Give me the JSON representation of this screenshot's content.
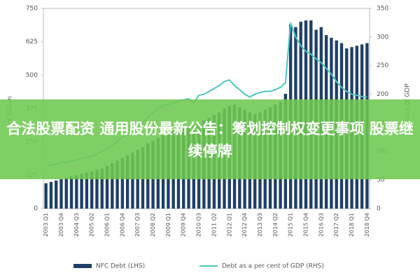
{
  "chart_data": {
    "type": "bar",
    "y_label": "€ billion",
    "y2_label": "per cent of GDP",
    "categories": [
      "2003 Q1",
      null,
      null,
      "2003 Q4",
      null,
      null,
      "2004 Q3",
      null,
      null,
      "2005 Q2",
      null,
      null,
      "2006 Q1",
      null,
      null,
      "2006 Q4",
      null,
      null,
      "2007 Q3",
      null,
      null,
      "2008 Q2",
      null,
      null,
      "2009 Q1",
      null,
      null,
      "2009 Q4",
      null,
      null,
      "2010 Q3",
      null,
      null,
      "2011 Q2",
      null,
      null,
      "2012 Q1",
      null,
      null,
      "2012 Q4",
      null,
      null,
      "2013 Q3",
      null,
      null,
      "2014 Q2",
      null,
      null,
      "2015 Q1",
      null,
      null,
      "2015 Q4",
      null,
      null,
      "2016 Q3",
      null,
      null,
      "2017 Q2",
      null,
      null,
      "2018 Q1",
      null,
      null,
      "2018 Q4"
    ],
    "series": [
      {
        "name": "NFC Debt (LHS)",
        "type": "bar",
        "color": "#1f3f66",
        "values": [
          95,
          100,
          105,
          110,
          115,
          120,
          125,
          130,
          135,
          140,
          145,
          150,
          160,
          170,
          180,
          190,
          200,
          210,
          220,
          230,
          245,
          255,
          265,
          275,
          285,
          290,
          295,
          300,
          305,
          310,
          320,
          330,
          340,
          350,
          360,
          375,
          385,
          390,
          380,
          370,
          360,
          355,
          360,
          370,
          380,
          390,
          400,
          430,
          690,
          680,
          700,
          705,
          705,
          670,
          680,
          650,
          640,
          630,
          620,
          600,
          605,
          610,
          615,
          620
        ]
      },
      {
        "name": "Debt as a per cent of GDP (RHS)",
        "type": "line",
        "axis": "y2",
        "color": "#4cc6c0",
        "values": [
          75,
          76,
          78,
          82,
          80,
          83,
          85,
          88,
          90,
          92,
          95,
          100,
          105,
          110,
          118,
          125,
          130,
          135,
          140,
          150,
          160,
          168,
          175,
          180,
          182,
          185,
          188,
          190,
          192,
          185,
          198,
          200,
          205,
          210,
          215,
          222,
          225,
          215,
          208,
          200,
          195,
          200,
          203,
          205,
          205,
          208,
          212,
          220,
          325,
          300,
          285,
          275,
          270,
          262,
          255,
          245,
          235,
          222,
          212,
          205,
          200,
          198,
          196,
          195
        ]
      }
    ],
    "ylim": [
      0,
      750
    ],
    "yticks": [
      0,
      125,
      250,
      375,
      500,
      625,
      750
    ],
    "y2lim": [
      0,
      350
    ],
    "y2ticks": [
      0,
      50,
      100,
      150,
      200,
      250,
      300,
      350
    ],
    "grid": false
  },
  "banner": {
    "text": "合法股票配资 通用股份最新公告：筹划控制权变更事项 股票继续停牌"
  }
}
